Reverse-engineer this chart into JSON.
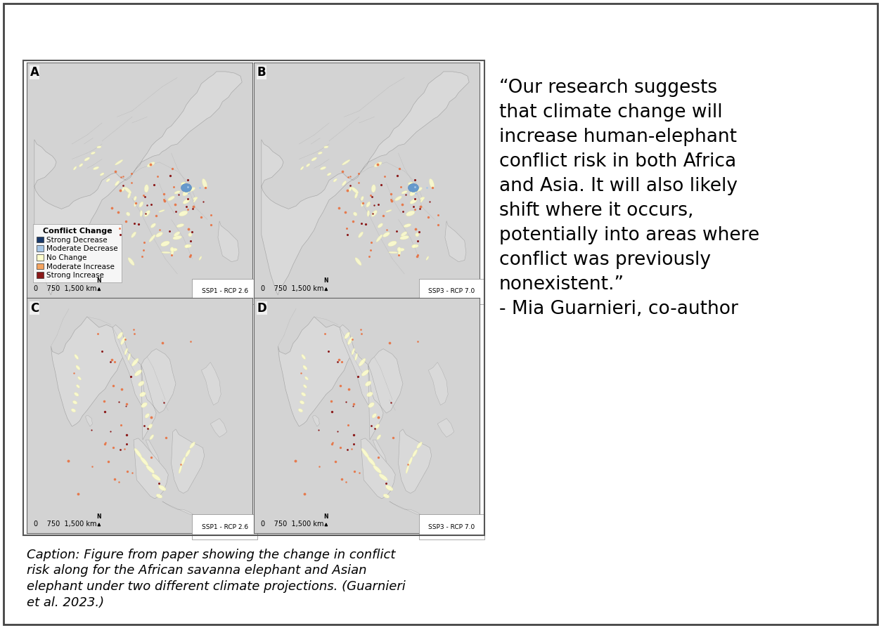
{
  "quote_text": "“Our research suggests\nthat climate change will\nincrease human-elephant\nconflict risk in both Africa\nand Asia. It will also likely\nshift where it occurs,\npotentially into areas where\nconflict was previously\nnonexistent.”\n- Mia Guarnieri, co-author",
  "caption_text": "Caption: Figure from paper showing the change in conflict\nrisk along for the African savanna elephant and Asian\nelephant under two different climate projections. (Guarnieri\net al. 2023.)",
  "panel_labels": [
    "A",
    "B",
    "C",
    "D"
  ],
  "panel_subtitles": [
    "SSP1 - RCP 2.6",
    "SSP3 - RCP 7.0",
    "SSP1 - RCP 2.6",
    "SSP3 - RCP 7.0"
  ],
  "legend_title": "Conflict Change",
  "legend_items": [
    {
      "label": "Strong Decrease",
      "color": "#1a3a6b"
    },
    {
      "label": "Moderate Decrease",
      "color": "#a8c8e8"
    },
    {
      "label": "No Change",
      "color": "#ffffcc"
    },
    {
      "label": "Moderate Increase",
      "color": "#f4a460"
    },
    {
      "label": "Strong Increase",
      "color": "#8b1a1a"
    }
  ],
  "ocean_color": "#d3d3d3",
  "land_color": "#d9d9d9",
  "border_color": "#aaaaaa",
  "figure_bg": "#ffffff",
  "quote_fontsize": 19,
  "caption_fontsize": 13,
  "panel_label_fontsize": 12,
  "legend_title_fontsize": 8,
  "legend_fontsize": 7.5,
  "scale_fontsize": 7
}
